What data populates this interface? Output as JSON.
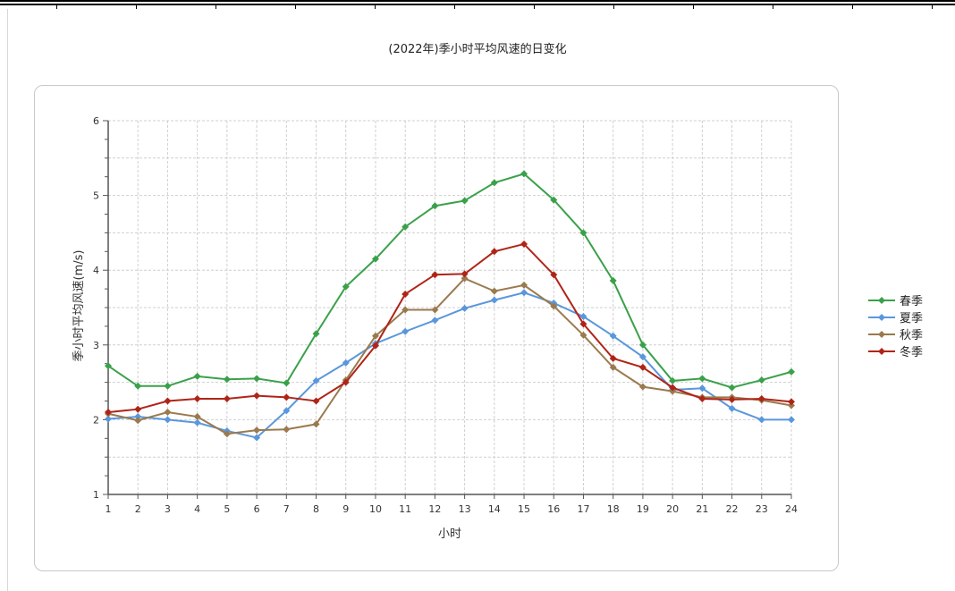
{
  "chart_data": {
    "type": "line",
    "title": "(2022年)季小时平均风速的日变化",
    "xlabel": "小时",
    "ylabel": "季小时平均风速(m/s)",
    "x": [
      1,
      2,
      3,
      4,
      5,
      6,
      7,
      8,
      9,
      10,
      11,
      12,
      13,
      14,
      15,
      16,
      17,
      18,
      19,
      20,
      21,
      22,
      23,
      24
    ],
    "ylim": [
      1,
      6
    ],
    "yticks": [
      1,
      2,
      3,
      4,
      5,
      6
    ],
    "grid": true,
    "legend_position": "right",
    "series": [
      {
        "name": "春季",
        "color": "#3aa14a",
        "values": [
          2.72,
          2.45,
          2.45,
          2.58,
          2.54,
          2.55,
          2.49,
          3.15,
          3.78,
          4.15,
          4.58,
          4.86,
          4.93,
          5.17,
          5.29,
          4.94,
          4.5,
          3.86,
          3.0,
          2.52,
          2.55,
          2.43,
          2.53,
          2.64
        ]
      },
      {
        "name": "夏季",
        "color": "#5a97dc",
        "values": [
          2.01,
          2.04,
          2.0,
          1.96,
          1.85,
          1.76,
          2.12,
          2.52,
          2.76,
          3.02,
          3.18,
          3.33,
          3.49,
          3.6,
          3.7,
          3.56,
          3.38,
          3.12,
          2.84,
          2.4,
          2.42,
          2.15,
          2.0,
          2.0
        ]
      },
      {
        "name": "秋季",
        "color": "#9a7a4e",
        "values": [
          2.08,
          1.99,
          2.1,
          2.04,
          1.81,
          1.86,
          1.87,
          1.94,
          2.53,
          3.12,
          3.47,
          3.47,
          3.89,
          3.72,
          3.8,
          3.52,
          3.13,
          2.7,
          2.44,
          2.38,
          2.3,
          2.3,
          2.26,
          2.19
        ]
      },
      {
        "name": "冬季",
        "color": "#b02418",
        "values": [
          2.1,
          2.14,
          2.25,
          2.28,
          2.28,
          2.32,
          2.3,
          2.25,
          2.5,
          2.99,
          3.68,
          3.94,
          3.95,
          4.25,
          4.35,
          3.94,
          3.28,
          2.82,
          2.7,
          2.43,
          2.28,
          2.27,
          2.28,
          2.24
        ]
      }
    ]
  }
}
